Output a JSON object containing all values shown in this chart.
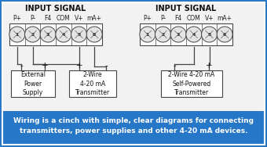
{
  "bg_color": "#2777c8",
  "diagram_bg": "#f5f5f5",
  "title1": "INPUT SIGNAL",
  "title2": "INPUT SIGNAL",
  "terminal_labels": [
    "P+",
    "P-",
    "F4",
    "COM",
    "V+",
    "mA+"
  ],
  "terminal_numbers": [
    "1",
    "2",
    "3",
    "4",
    "5",
    "6"
  ],
  "box1_label": "External\nPower\nSupply",
  "box2_label": "2-Wire\n4-20 mA\nTransmitter",
  "box3_label": "2-Wire 4-20 mA\nSelf-Powered\nTransmitter",
  "footer_text": "Wiring is a cinch with simple, clear diagrams for connecting\ntransmitters, power supplies and other 4-20 mA devices.",
  "footer_color": "#2777c8",
  "footer_text_color": "white",
  "line_color": "#444444",
  "border_color": "#dddddd"
}
